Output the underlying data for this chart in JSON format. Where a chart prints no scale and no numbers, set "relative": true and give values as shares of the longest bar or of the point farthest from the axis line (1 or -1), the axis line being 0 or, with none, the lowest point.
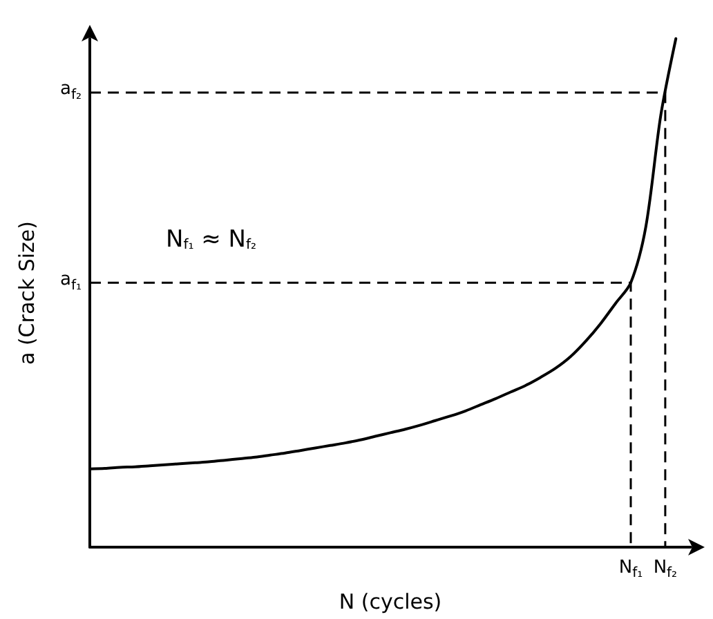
{
  "chart_data": {
    "type": "line",
    "xlabel": "N (cycles)",
    "ylabel": "a (Crack Size)",
    "relative": true,
    "annotations": [
      "N$_{f₁}$ ≈ N$_{f₂}$",
      "N$_{f₁}$",
      "N$_{f₂}$"
    ],
    "categories": [
      null,
      null,
      null,
      null,
      null,
      null,
      null,
      null,
      null,
      null,
      null,
      null,
      null,
      null,
      null,
      null,
      null,
      null,
      null,
      null,
      null,
      null,
      null,
      null,
      null,
      null,
      null,
      null,
      null,
      null,
      null,
      null,
      null,
      null,
      null,
      null,
      null,
      null,
      null,
      null,
      null
    ],
    "grid": false,
    "marker": "none",
    "line_style": "solid",
    "ref_lines": [
      {
        "axis": "y",
        "value": 0.52,
        "label": "a$_{f₁}$",
        "color": "#000000",
        "line_style": "dashed"
      },
      {
        "axis": "y",
        "value": 0.894,
        "label": "a$_{f₂}$",
        "color": "#000000",
        "line_style": "dashed"
      }
    ],
    "series": [
      {
        "color": "#000000",
        "values": [
          0.154,
          0.155,
          0.157,
          0.158,
          0.16,
          0.162,
          0.164,
          0.166,
          0.168,
          0.171,
          0.174,
          0.177,
          0.181,
          0.185,
          0.19,
          0.195,
          0.2,
          0.205,
          0.211,
          0.218,
          0.225,
          0.232,
          0.24,
          0.249,
          0.258,
          0.268,
          0.28,
          0.292,
          0.305,
          0.318,
          0.334,
          0.352,
          0.375,
          0.405,
          0.44,
          0.48,
          0.52,
          0.63,
          0.85,
          1.0,
          null
        ]
      }
    ]
  }
}
